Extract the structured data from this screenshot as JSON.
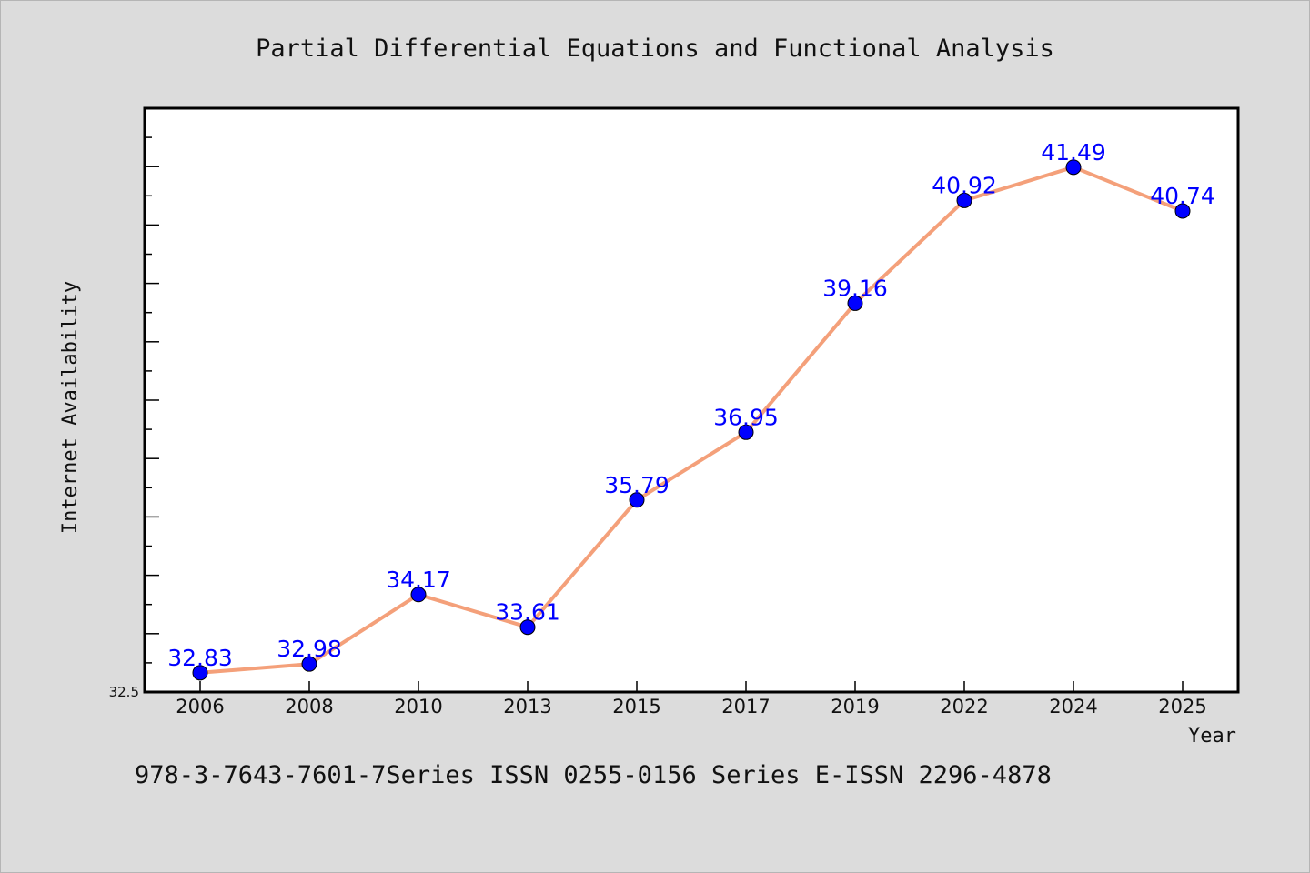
{
  "chart_data": {
    "type": "line",
    "title": "Partial Differential Equations and Functional Analysis",
    "xlabel": "Year",
    "ylabel": "Internet Availability",
    "categories": [
      "2006",
      "2008",
      "2010",
      "2013",
      "2015",
      "2017",
      "2019",
      "2022",
      "2024",
      "2025"
    ],
    "series": [
      {
        "values": [
          32.83,
          32.98,
          34.17,
          33.61,
          35.79,
          36.95,
          39.16,
          40.92,
          41.49,
          40.74
        ],
        "data_labels": [
          "32.83",
          "32.98",
          "34.17",
          "33.61",
          "35.79",
          "36.95",
          "39.16",
          "40.92",
          "41.49",
          "40.74"
        ],
        "line_color": "#f4a07a",
        "marker_color": "#0000ff"
      }
    ],
    "ylim": [
      32.5,
      42.5
    ],
    "y_min_label": "32.5",
    "grid": false,
    "legend": "none"
  },
  "footer": {
    "text": "978-3-7643-7601-7Series ISSN 0255-0156 Series E-ISSN 2296-4878"
  },
  "colors": {
    "background": "#dcdcdc",
    "plot_background": "#ffffff",
    "line": "#f4a07a",
    "marker": "#0000ff",
    "data_label": "#0000ff"
  }
}
